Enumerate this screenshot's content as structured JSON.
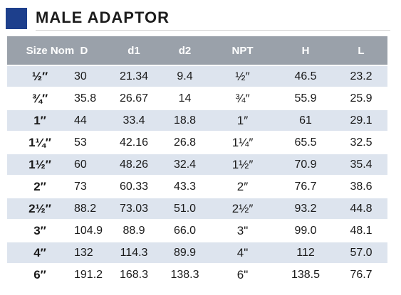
{
  "title": "MALE ADAPTOR",
  "headers": {
    "size": "Size Nom",
    "d": "D",
    "d1": "d1",
    "d2": "d2",
    "npt": "NPT",
    "h": "H",
    "l": "L"
  },
  "rows": [
    {
      "size": "½″",
      "d": "30",
      "d1": "21.34",
      "d2": "9.4",
      "npt": "½″",
      "h": "46.5",
      "l": "23.2"
    },
    {
      "size": "¾″",
      "d": "35.8",
      "d1": "26.67",
      "d2": "14",
      "npt": "¾″",
      "h": "55.9",
      "l": "25.9"
    },
    {
      "size": "1″",
      "d": "44",
      "d1": "33.4",
      "d2": "18.8",
      "npt": "1″",
      "h": "61",
      "l": "29.1"
    },
    {
      "size": "1¼″",
      "d": "53",
      "d1": "42.16",
      "d2": "26.8",
      "npt": "1¼″",
      "h": "65.5",
      "l": "32.5"
    },
    {
      "size": "1½″",
      "d": "60",
      "d1": "48.26",
      "d2": "32.4",
      "npt": "1½″",
      "h": "70.9",
      "l": "35.4"
    },
    {
      "size": "2″",
      "d": "73",
      "d1": "60.33",
      "d2": "43.3",
      "npt": "2″",
      "h": "76.7",
      "l": "38.6"
    },
    {
      "size": "2½″",
      "d": "88.2",
      "d1": "73.03",
      "d2": "51.0",
      "npt": "2½″",
      "h": "93.2",
      "l": "44.8"
    },
    {
      "size": "3″",
      "d": "104.9",
      "d1": "88.9",
      "d2": "66.0",
      "npt": "3\"",
      "h": "99.0",
      "l": "48.1"
    },
    {
      "size": "4″",
      "d": "132",
      "d1": "114.3",
      "d2": "89.9",
      "npt": "4\"",
      "h": "112",
      "l": "57.0"
    },
    {
      "size": "6″",
      "d": "191.2",
      "d1": "168.3",
      "d2": "138.3",
      "npt": "6\"",
      "h": "138.5",
      "l": "76.7"
    }
  ],
  "colors": {
    "accent_square": "#1d3f8c",
    "header_bg": "#9aa1aa",
    "row_shaded": "#dde4ee"
  }
}
